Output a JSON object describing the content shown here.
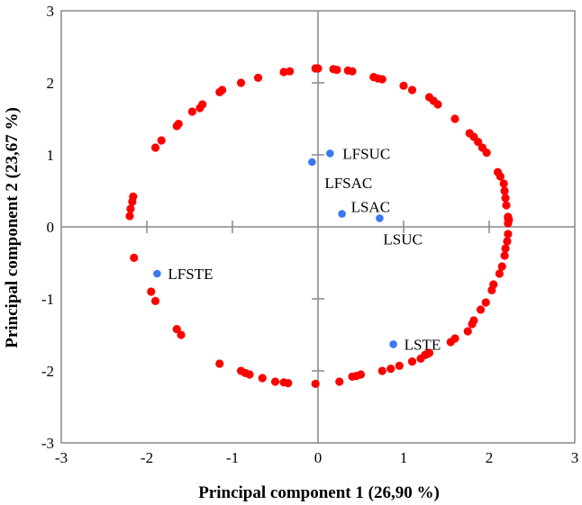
{
  "chart_data": {
    "type": "scatter",
    "title": "",
    "xlabel": "Principal component 1 (26,90 %)",
    "ylabel": "Principal component 2 (23,67 %)",
    "xlim": [
      -3,
      3
    ],
    "ylim": [
      -3,
      3
    ],
    "x_ticks": [
      "-3",
      "-2",
      "-1",
      "0",
      "1",
      "2",
      "3"
    ],
    "y_ticks": [
      "3",
      "2",
      "1",
      "0",
      "-1",
      "-2",
      "-3"
    ],
    "grid": false,
    "legend": "none",
    "colors": {
      "circle": "#ff0000",
      "samples": "#3a78f0",
      "axes": "#888888"
    },
    "series": [
      {
        "role": "circle",
        "marker_color": "#ff0000",
        "points": [
          [
            -0.03,
            2.2
          ],
          [
            0.0,
            2.2
          ],
          [
            0.18,
            2.19
          ],
          [
            0.22,
            2.18
          ],
          [
            0.35,
            2.17
          ],
          [
            0.4,
            2.16
          ],
          [
            0.65,
            2.08
          ],
          [
            0.7,
            2.06
          ],
          [
            0.75,
            2.05
          ],
          [
            1.0,
            1.96
          ],
          [
            1.1,
            1.9
          ],
          [
            1.3,
            1.8
          ],
          [
            1.35,
            1.75
          ],
          [
            1.4,
            1.7
          ],
          [
            1.6,
            1.5
          ],
          [
            1.77,
            1.3
          ],
          [
            1.82,
            1.25
          ],
          [
            1.87,
            1.18
          ],
          [
            1.92,
            1.1
          ],
          [
            1.97,
            1.03
          ],
          [
            2.1,
            0.76
          ],
          [
            2.13,
            0.7
          ],
          [
            2.17,
            0.6
          ],
          [
            2.18,
            0.5
          ],
          [
            2.19,
            0.4
          ],
          [
            2.2,
            0.3
          ],
          [
            2.22,
            0.14
          ],
          [
            2.22,
            0.12
          ],
          [
            2.23,
            0.1
          ],
          [
            2.22,
            0.05
          ],
          [
            2.22,
            -0.1
          ],
          [
            2.21,
            -0.2
          ],
          [
            2.19,
            -0.3
          ],
          [
            2.18,
            -0.4
          ],
          [
            2.15,
            -0.55
          ],
          [
            2.12,
            -0.65
          ],
          [
            2.05,
            -0.8
          ],
          [
            2.03,
            -0.88
          ],
          [
            1.96,
            -1.05
          ],
          [
            1.9,
            -1.15
          ],
          [
            1.82,
            -1.3
          ],
          [
            1.8,
            -1.35
          ],
          [
            1.75,
            -1.45
          ],
          [
            1.6,
            -1.55
          ],
          [
            1.55,
            -1.6
          ],
          [
            1.3,
            -1.75
          ],
          [
            1.27,
            -1.77
          ],
          [
            1.25,
            -1.78
          ],
          [
            1.2,
            -1.83
          ],
          [
            1.1,
            -1.87
          ],
          [
            0.95,
            -1.93
          ],
          [
            0.85,
            -1.97
          ],
          [
            0.75,
            -2.0
          ],
          [
            0.5,
            -2.05
          ],
          [
            0.45,
            -2.07
          ],
          [
            0.4,
            -2.08
          ],
          [
            0.25,
            -2.15
          ],
          [
            -0.03,
            -2.18
          ],
          [
            -0.35,
            -2.17
          ],
          [
            -0.4,
            -2.16
          ],
          [
            -0.5,
            -2.15
          ],
          [
            -0.65,
            -2.1
          ],
          [
            -0.8,
            -2.05
          ],
          [
            -0.85,
            -2.03
          ],
          [
            -0.9,
            -2.0
          ],
          [
            -1.15,
            -1.9
          ],
          [
            -1.6,
            -1.5
          ],
          [
            -1.65,
            -1.42
          ],
          [
            -1.9,
            -1.03
          ],
          [
            -1.95,
            -0.9
          ],
          [
            -2.15,
            -0.43
          ],
          [
            -2.2,
            0.15
          ],
          [
            -2.19,
            0.25
          ],
          [
            -2.17,
            0.35
          ],
          [
            -2.16,
            0.42
          ],
          [
            -1.9,
            1.1
          ],
          [
            -1.83,
            1.2
          ],
          [
            -1.65,
            1.4
          ],
          [
            -1.63,
            1.43
          ],
          [
            -1.47,
            1.6
          ],
          [
            -1.38,
            1.65
          ],
          [
            -1.35,
            1.7
          ],
          [
            -1.15,
            1.87
          ],
          [
            -1.12,
            1.9
          ],
          [
            -0.9,
            2.0
          ],
          [
            -0.7,
            2.07
          ],
          [
            -0.4,
            2.15
          ],
          [
            -0.33,
            2.16
          ]
        ]
      },
      {
        "role": "samples",
        "marker_color": "#3a78f0",
        "points": [
          {
            "label": "LFSUC",
            "x": 0.14,
            "y": 1.02
          },
          {
            "label": "LFSAC",
            "x": -0.07,
            "y": 0.9
          },
          {
            "label": "LSAC",
            "x": 0.28,
            "y": 0.18
          },
          {
            "label": "LSUC",
            "x": 0.72,
            "y": 0.12
          },
          {
            "label": "LFSTE",
            "x": -1.88,
            "y": -0.65
          },
          {
            "label": "LSTE",
            "x": 0.88,
            "y": -1.63
          }
        ]
      }
    ]
  }
}
